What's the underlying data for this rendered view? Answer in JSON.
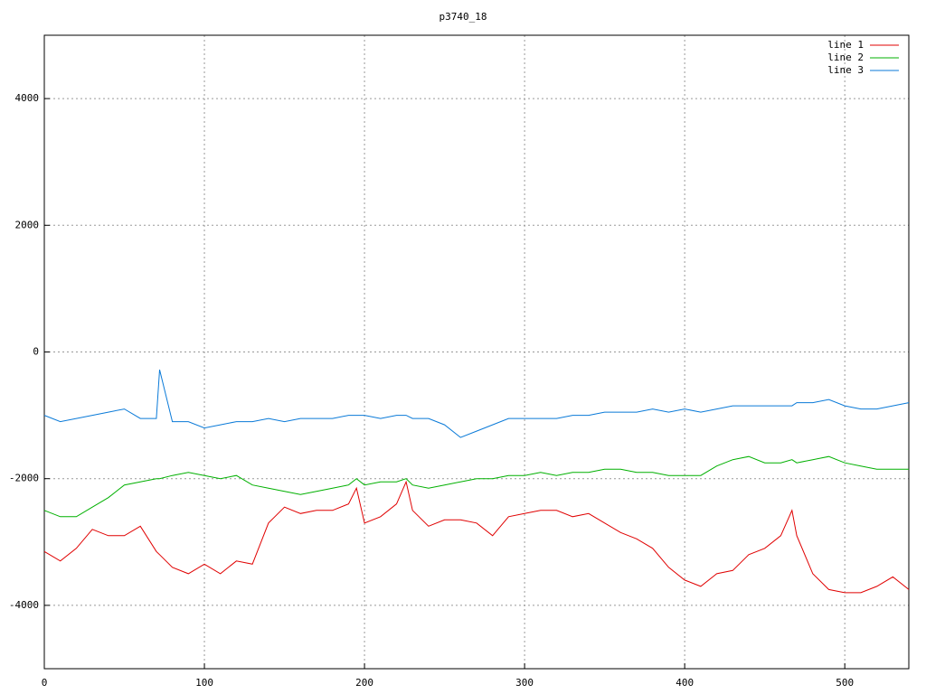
{
  "chart_data": {
    "type": "line",
    "title": "p3740_18",
    "x": [
      0,
      10,
      20,
      30,
      40,
      50,
      60,
      70,
      72,
      80,
      90,
      100,
      110,
      120,
      130,
      140,
      150,
      160,
      170,
      180,
      190,
      195,
      200,
      210,
      220,
      226,
      230,
      240,
      250,
      260,
      270,
      280,
      290,
      300,
      310,
      320,
      330,
      340,
      350,
      360,
      370,
      380,
      390,
      400,
      410,
      420,
      430,
      440,
      450,
      460,
      467,
      470,
      480,
      490,
      500,
      510,
      520,
      530,
      540
    ],
    "series": [
      {
        "name": "line 1",
        "color": "#e00000",
        "values": [
          -3150,
          -3300,
          -3100,
          -2800,
          -2900,
          -2900,
          -2750,
          -3150,
          -3200,
          -3400,
          -3500,
          -3350,
          -3500,
          -3300,
          -3350,
          -2700,
          -2450,
          -2550,
          -2500,
          -2500,
          -2400,
          -2150,
          -2700,
          -2600,
          -2400,
          -2050,
          -2500,
          -2750,
          -2650,
          -2650,
          -2700,
          -2900,
          -2600,
          -2550,
          -2500,
          -2500,
          -2600,
          -2550,
          -2700,
          -2850,
          -2950,
          -3100,
          -3400,
          -3600,
          -3700,
          -3500,
          -3450,
          -3200,
          -3100,
          -2900,
          -2500,
          -2900,
          -3500,
          -3750,
          -3800,
          -3800,
          -3700,
          -3550,
          -3750
        ]
      },
      {
        "name": "line 2",
        "color": "#00b000",
        "values": [
          -2500,
          -2600,
          -2600,
          -2450,
          -2300,
          -2100,
          -2050,
          -2000,
          -2000,
          -1950,
          -1900,
          -1950,
          -2000,
          -1950,
          -2100,
          -2150,
          -2200,
          -2250,
          -2200,
          -2150,
          -2100,
          -2000,
          -2100,
          -2050,
          -2050,
          -2000,
          -2100,
          -2150,
          -2100,
          -2050,
          -2000,
          -2000,
          -1950,
          -1950,
          -1900,
          -1950,
          -1900,
          -1900,
          -1850,
          -1850,
          -1900,
          -1900,
          -1950,
          -1950,
          -1950,
          -1800,
          -1700,
          -1650,
          -1750,
          -1750,
          -1700,
          -1750,
          -1700,
          -1650,
          -1750,
          -1800,
          -1850,
          -1850,
          -1850
        ]
      },
      {
        "name": "line 3",
        "color": "#0a7ad8",
        "values": [
          -1000,
          -1100,
          -1050,
          -1000,
          -950,
          -900,
          -1050,
          -1050,
          -280,
          -1100,
          -1100,
          -1200,
          -1150,
          -1100,
          -1100,
          -1050,
          -1100,
          -1050,
          -1050,
          -1050,
          -1000,
          -1000,
          -1000,
          -1050,
          -1000,
          -1000,
          -1050,
          -1050,
          -1150,
          -1350,
          -1250,
          -1150,
          -1050,
          -1050,
          -1050,
          -1050,
          -1000,
          -1000,
          -950,
          -950,
          -950,
          -900,
          -950,
          -900,
          -950,
          -900,
          -850,
          -850,
          -850,
          -850,
          -850,
          -800,
          -800,
          -750,
          -850,
          -900,
          -900,
          -850,
          -800
        ]
      }
    ],
    "xlim": [
      0,
      540
    ],
    "xticks": [
      0,
      100,
      200,
      300,
      400,
      500
    ],
    "ylim": [
      -5000,
      5000
    ],
    "yticks": [
      -4000,
      -2000,
      0,
      2000,
      4000
    ],
    "grid": true,
    "legend": "top-right"
  }
}
